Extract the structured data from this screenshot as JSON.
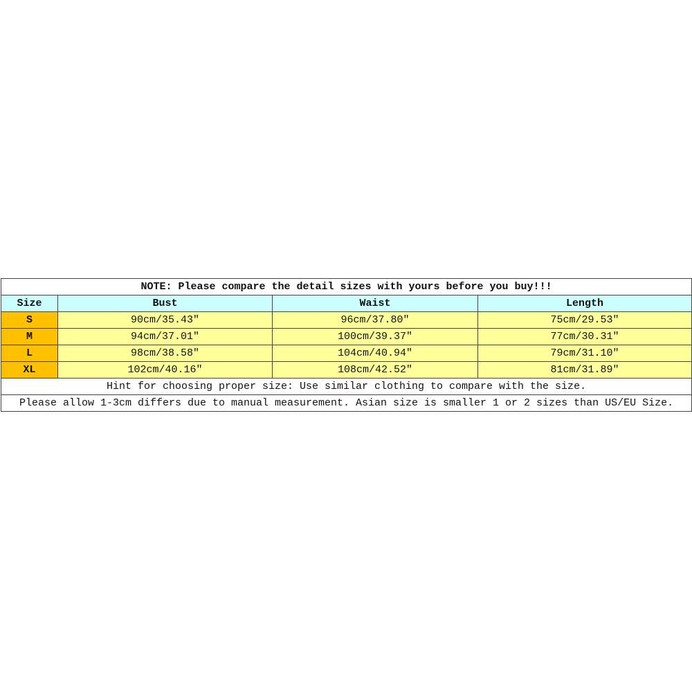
{
  "note": "NOTE: Please compare the detail sizes with yours before you buy!!!",
  "headers": [
    "Size",
    "Bust",
    "Waist",
    "Length"
  ],
  "rows": [
    {
      "size": "S",
      "bust": "90cm/35.43″",
      "waist": "96cm/37.80″",
      "length": "75cm/29.53″"
    },
    {
      "size": "M",
      "bust": "94cm/37.01″",
      "waist": "100cm/39.37″",
      "length": "77cm/30.31″"
    },
    {
      "size": "L",
      "bust": "98cm/38.58″",
      "waist": "104cm/40.94″",
      "length": "79cm/31.10″"
    },
    {
      "size": "XL",
      "bust": "102cm/40.16″",
      "waist": "108cm/42.52″",
      "length": "81cm/31.89″"
    }
  ],
  "hint": "Hint for choosing proper size: Use similar clothing to compare with the size.",
  "disclaimer": "Please allow 1-3cm differs due to manual measurement. Asian size is smaller 1 or 2 sizes than US/EU Size.",
  "colors": {
    "header": "#ccffff",
    "size_cell": "#ffc000",
    "value_cell": "#ffff99"
  }
}
